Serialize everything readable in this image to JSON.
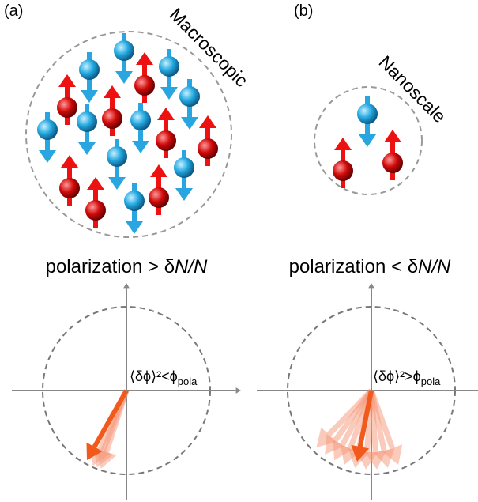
{
  "panels": [
    {
      "label": "(a)",
      "scale": "Macroscopic",
      "condition": "polarization > δ",
      "condition_italic": "N/N",
      "relation": "⟨δϕ⟩²<ϕ",
      "relation_sub": "pola"
    },
    {
      "label": "(b)",
      "scale": "Nanoscale",
      "condition": "polarization < δ",
      "condition_italic": "N/N",
      "relation": "⟨δϕ⟩²>ϕ",
      "relation_sub": "pola"
    }
  ]
}
